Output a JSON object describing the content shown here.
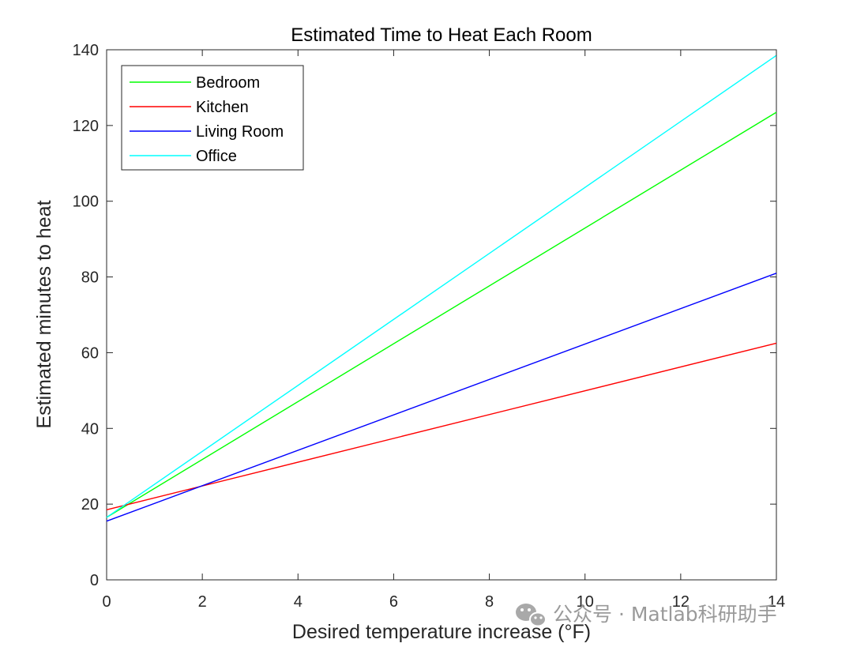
{
  "chart_data": {
    "type": "line",
    "title": "Estimated Time to Heat Each Room",
    "xlabel": "Desired temperature increase (°F)",
    "ylabel": "Estimated minutes to heat",
    "xlim": [
      0,
      14
    ],
    "ylim": [
      0,
      140
    ],
    "xticks": [
      0,
      2,
      4,
      6,
      8,
      10,
      12,
      14
    ],
    "yticks": [
      0,
      20,
      40,
      60,
      80,
      100,
      120,
      140
    ],
    "grid": false,
    "legend_position": "top-left",
    "series": [
      {
        "name": "Bedroom",
        "color": "#00ff00",
        "x": [
          0,
          14
        ],
        "y": [
          16.5,
          123.5
        ]
      },
      {
        "name": "Kitchen",
        "color": "#ff0000",
        "x": [
          0,
          14
        ],
        "y": [
          18.5,
          62.5
        ]
      },
      {
        "name": "Living Room",
        "color": "#0000ff",
        "x": [
          0,
          14
        ],
        "y": [
          15.5,
          81
        ]
      },
      {
        "name": "Office",
        "color": "#00ffff",
        "x": [
          0,
          14
        ],
        "y": [
          16.5,
          138.5
        ]
      }
    ]
  },
  "watermark": {
    "text": "公众号 · Matlab科研助手",
    "icon": "wechat-icon"
  }
}
